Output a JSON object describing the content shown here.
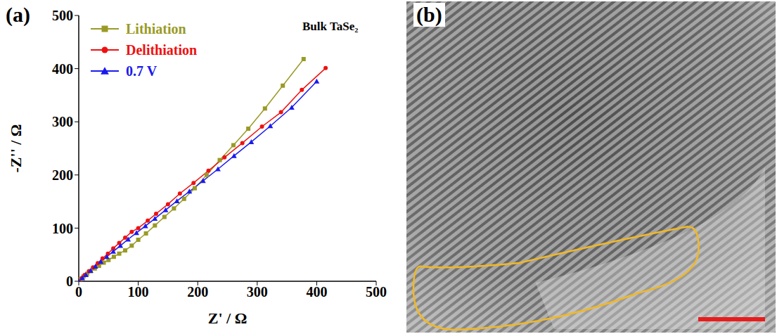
{
  "chart_data": {
    "type": "line",
    "panel_label": "(a)",
    "title": "Bulk TaSe₂",
    "x_label": "Z' / Ω",
    "y_label": "-Z'' / Ω",
    "xlim": [
      0,
      500
    ],
    "xticks": [
      0,
      100,
      200,
      300,
      400,
      500
    ],
    "ylim": [
      0,
      500
    ],
    "yticks": [
      0,
      100,
      200,
      300,
      400,
      500
    ],
    "grid": false,
    "legend": "upper left",
    "series": [
      {
        "name": "Lithiation",
        "color": "#9a9a26",
        "marker": "square",
        "line_style": "solid",
        "x": [
          0,
          3,
          8,
          14,
          20,
          27,
          34,
          42,
          50,
          59,
          68,
          78,
          89,
          100,
          113,
          128,
          144,
          160,
          177,
          195,
          215,
          237,
          260,
          285,
          313,
          343,
          378
        ],
        "values": [
          0,
          4,
          9,
          14,
          19,
          24,
          29,
          35,
          40,
          46,
          52,
          58,
          67,
          78,
          90,
          105,
          121,
          137,
          155,
          175,
          200,
          228,
          256,
          287,
          325,
          368,
          418
        ]
      },
      {
        "name": "Delithiation",
        "color": "#ee1111",
        "marker": "circle",
        "line_style": "solid",
        "x": [
          0,
          5,
          10,
          17,
          24,
          32,
          40,
          49,
          58,
          68,
          78,
          89,
          100,
          116,
          130,
          150,
          170,
          193,
          218,
          245,
          275,
          308,
          340,
          375,
          415
        ],
        "values": [
          0,
          6,
          12,
          19,
          26,
          34,
          43,
          52,
          62,
          72,
          82,
          93,
          100,
          114,
          127,
          145,
          165,
          185,
          208,
          233,
          260,
          291,
          318,
          360,
          401
        ]
      },
      {
        "name": "0.7 V",
        "color": "#1a1aee",
        "marker": "triangle",
        "line_style": "solid",
        "x": [
          0,
          6,
          12,
          20,
          28,
          37,
          47,
          58,
          70,
          83,
          97,
          112,
          128,
          146,
          165,
          186,
          209,
          234,
          261,
          290,
          322,
          358,
          400
        ],
        "values": [
          0,
          6,
          12,
          20,
          28,
          37,
          46,
          56,
          67,
          79,
          91,
          104,
          118,
          134,
          151,
          169,
          189,
          211,
          236,
          262,
          292,
          327,
          376
        ]
      }
    ]
  },
  "image_panel": {
    "panel_label": "(b)"
  }
}
